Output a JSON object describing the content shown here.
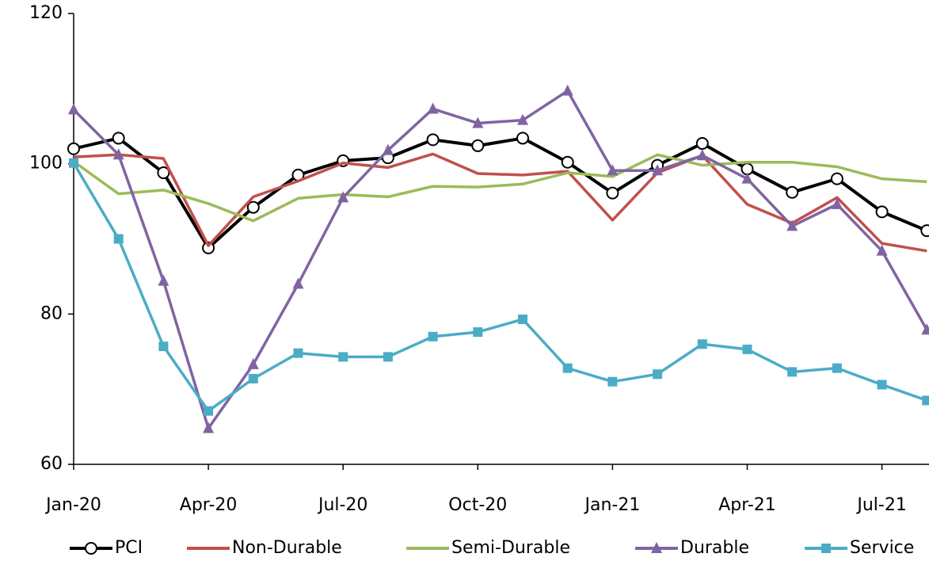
{
  "chart_data": {
    "type": "line",
    "categories": [
      "Jan-20",
      null,
      null,
      "Apr-20",
      null,
      null,
      "Jul-20",
      null,
      null,
      "Oct-20",
      null,
      null,
      "Jan-21",
      null,
      null,
      "Apr-21",
      null,
      null,
      "Jul-21",
      null
    ],
    "ylim": [
      60,
      120
    ],
    "yticks": [
      60,
      80,
      100,
      120
    ],
    "legend": "bottom",
    "series": [
      {
        "name": "PCI",
        "color": "#000000",
        "marker": "circle",
        "values": [
          102.0,
          103.4,
          98.8,
          88.8,
          94.2,
          98.5,
          100.4,
          100.8,
          103.2,
          102.4,
          103.4,
          100.2,
          96.1,
          99.8,
          102.7,
          99.3,
          96.2,
          98.0,
          93.6,
          91.1
        ]
      },
      {
        "name": "Non-Durable",
        "color": "#c0504d",
        "marker": "none",
        "values": [
          100.9,
          101.2,
          100.7,
          89.1,
          95.6,
          97.7,
          100.1,
          99.5,
          101.3,
          98.7,
          98.5,
          99.0,
          92.5,
          98.8,
          101.1,
          94.6,
          92.1,
          95.5,
          89.4,
          88.4
        ]
      },
      {
        "name": "Semi-Durable",
        "color": "#9bbb59",
        "marker": "none",
        "values": [
          100.3,
          96.0,
          96.5,
          94.7,
          92.4,
          95.4,
          95.9,
          95.6,
          97.0,
          96.9,
          97.3,
          98.8,
          98.3,
          101.2,
          99.8,
          100.2,
          100.2,
          99.6,
          98.0,
          97.6
        ]
      },
      {
        "name": "Durable",
        "color": "#8064a2",
        "marker": "triangle",
        "values": [
          107.2,
          101.2,
          84.4,
          64.8,
          73.3,
          84.0,
          95.5,
          101.8,
          107.3,
          105.4,
          105.8,
          109.7,
          99.1,
          99.1,
          101.1,
          98.0,
          91.7,
          94.6,
          88.4,
          77.9
        ]
      },
      {
        "name": "Service",
        "color": "#4bacc6",
        "marker": "square",
        "values": [
          100.1,
          90.0,
          75.7,
          67.1,
          71.4,
          74.8,
          74.3,
          74.3,
          77.0,
          77.6,
          79.3,
          72.8,
          71.0,
          72.0,
          76.0,
          75.3,
          72.3,
          72.8,
          70.6,
          68.5
        ]
      }
    ]
  }
}
